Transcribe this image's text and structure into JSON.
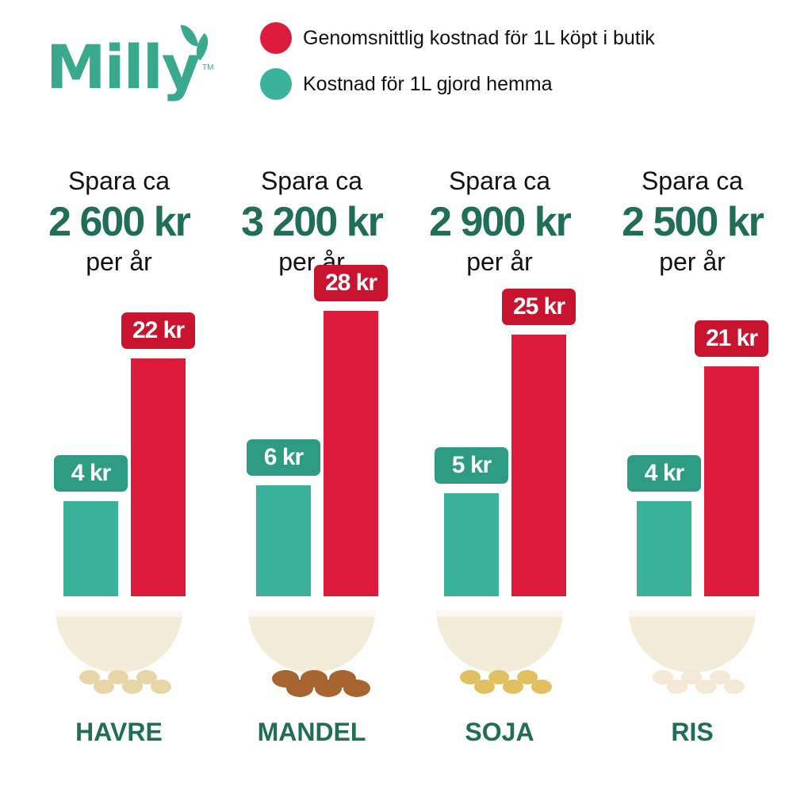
{
  "logo": {
    "text": "Milly",
    "tm": "TM"
  },
  "legend": [
    {
      "label": "Genomsnittlig kostnad för 1L köpt i butik",
      "color": "#dc1c3a"
    },
    {
      "label": "Kostnad för 1L gjord hemma",
      "color": "#3bb39a"
    }
  ],
  "chart_data": {
    "type": "bar",
    "categories": [
      "HAVRE",
      "MANDEL",
      "SOJA",
      "RIS"
    ],
    "series": [
      {
        "name": "Kostnad för 1L gjord hemma",
        "color": "#3bb39a",
        "values": [
          4,
          6,
          5,
          4
        ],
        "labels": [
          "4 kr",
          "6 kr",
          "5 kr",
          "4 kr"
        ]
      },
      {
        "name": "Genomsnittlig kostnad för 1L köpt i butik",
        "color": "#dc1c3a",
        "values": [
          22,
          28,
          25,
          21
        ],
        "labels": [
          "22 kr",
          "28 kr",
          "25 kr",
          "21 kr"
        ]
      }
    ],
    "savings": [
      {
        "line1": "Spara ca",
        "amount": "2 600 kr",
        "line3": "per år"
      },
      {
        "line1": "Spara ca",
        "amount": "3 200 kr",
        "line3": "per år"
      },
      {
        "line1": "Spara ca",
        "amount": "2 900 kr",
        "line3": "per år"
      },
      {
        "line1": "Spara ca",
        "amount": "2 500 kr",
        "line3": "per år"
      }
    ],
    "item_colors": [
      "#e8d6a8",
      "#a8642e",
      "#e0c060",
      "#f2ead6"
    ]
  }
}
